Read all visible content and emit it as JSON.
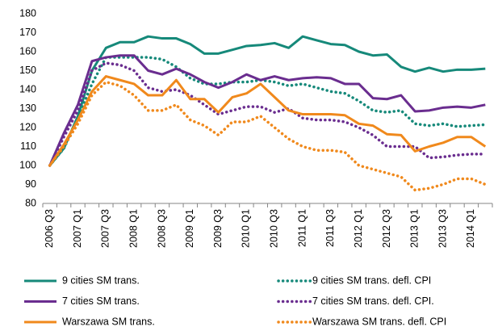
{
  "chart_data": {
    "type": "line",
    "categories": [
      "2006 Q3",
      null,
      "2007 Q1",
      null,
      "2007 Q3",
      null,
      "2008 Q1",
      null,
      "2008 Q3",
      null,
      "2009 Q1",
      null,
      "2009 Q3",
      null,
      "2010 Q1",
      null,
      "2010 Q3",
      null,
      "2011 Q1",
      null,
      "2011 Q3",
      null,
      "2012 Q1",
      null,
      "2012 Q3",
      null,
      "2013 Q1",
      null,
      "2013 Q3",
      null,
      "2014 Q1",
      null
    ],
    "ylim": [
      80,
      180
    ],
    "yticks": [
      80,
      90,
      100,
      110,
      120,
      130,
      140,
      150,
      160,
      170,
      180
    ],
    "grid": false,
    "legend": "bottom",
    "series": [
      {
        "name": "9 cities SM trans.",
        "color": "#16897a",
        "style": "solid",
        "values": [
          100,
          109,
          126,
          150,
          162,
          165,
          165,
          168,
          167,
          167,
          164,
          159,
          159,
          161,
          163,
          163.5,
          164.5,
          162,
          168,
          166,
          164,
          163.5,
          160,
          158,
          158.5,
          152,
          149.5,
          151.5,
          149.5,
          150.5,
          150.5,
          151
        ]
      },
      {
        "name": "9 cities SM trans. defl. CPI",
        "color": "#16897a",
        "style": "dotted",
        "values": [
          100,
          109,
          125,
          143,
          157,
          157,
          157,
          157,
          156,
          152,
          146,
          143,
          143,
          144,
          144,
          145,
          144,
          142,
          143,
          141,
          139,
          138,
          134,
          129,
          128,
          129,
          122,
          121,
          122,
          120.5,
          121,
          121.5
        ]
      },
      {
        "name": "7 cities SM trans.",
        "color": "#6a2d8f",
        "style": "solid",
        "values": [
          100,
          117,
          132,
          155,
          157,
          158,
          158,
          150,
          148,
          151,
          148,
          144,
          141,
          144,
          148,
          145,
          147,
          145,
          146,
          146.5,
          146,
          143,
          143,
          135.5,
          135,
          137,
          128.5,
          129,
          130.5,
          131,
          130.5,
          132
        ]
      },
      {
        "name": "7 cities SM trans. defl. CPI.",
        "color": "#6a2d8f",
        "style": "dotted",
        "values": [
          100,
          115,
          129,
          150,
          154,
          153,
          150,
          141,
          139,
          140,
          137,
          132,
          127,
          129,
          131,
          131,
          128,
          130,
          125,
          124,
          124,
          123,
          120,
          116,
          110,
          110,
          110,
          104,
          104.5,
          105.5,
          106,
          106
        ]
      },
      {
        "name": "Warszawa SM trans.",
        "color": "#f0891c",
        "style": "solid",
        "values": [
          100,
          111,
          124,
          139,
          147,
          145,
          143,
          137,
          137,
          145,
          135,
          135,
          128,
          136,
          138,
          143,
          136,
          129,
          127,
          127,
          127,
          126.5,
          122,
          121,
          116.5,
          116,
          107.5,
          110,
          112,
          115,
          115,
          110
        ]
      },
      {
        "name": "Warszawa SM trans. defl. CPI",
        "color": "#f0891c",
        "style": "dotted",
        "values": [
          100,
          110,
          122,
          137,
          144,
          142,
          137,
          129,
          129,
          132,
          124,
          121,
          116,
          123,
          123,
          126,
          120,
          114,
          110,
          108,
          108,
          107,
          100,
          98,
          96,
          94,
          87,
          88,
          90,
          93,
          93,
          90
        ]
      }
    ]
  }
}
